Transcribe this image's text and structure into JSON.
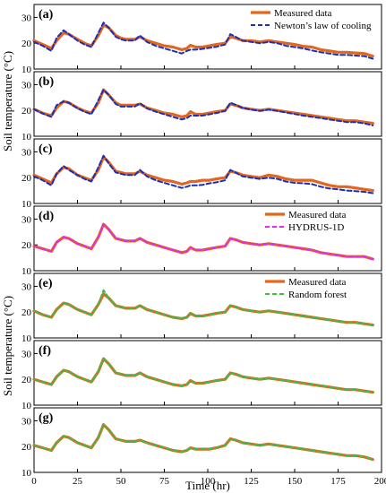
{
  "figure": {
    "y_axis_label": "Soil temperature (°C)",
    "x_axis_label": "Time (hr)",
    "x_tick_labels": [
      "0",
      "25",
      "50",
      "75",
      "100",
      "125",
      "150",
      "175",
      "200"
    ]
  },
  "colors": {
    "measured": "#E2661B",
    "newton": "#1C2FB8",
    "hydrus": "#E82BE0",
    "random_forest": "#47B847"
  },
  "chart_data": [
    {
      "type": "line",
      "panel_label": "(a)",
      "xlim": [
        0,
        200
      ],
      "ylim": [
        10,
        35
      ],
      "yticks": [
        10,
        20,
        30
      ],
      "legend": {
        "placement": "top-right",
        "entries": [
          "Measured data",
          "Newton’s law of cooling"
        ]
      },
      "x": [
        0,
        5,
        10,
        13,
        17,
        20,
        25,
        29,
        33,
        37,
        40,
        43,
        47,
        50,
        53,
        58,
        61,
        65,
        70,
        75,
        80,
        85,
        88,
        90,
        93,
        97,
        101,
        105,
        110,
        113,
        116,
        120,
        125,
        130,
        135,
        140,
        145,
        150,
        155,
        160,
        165,
        170,
        175,
        180,
        185,
        190,
        195
      ],
      "series": [
        {
          "name": "Measured data",
          "values": [
            21,
            19.5,
            18,
            21,
            24,
            23.5,
            21.5,
            20,
            19,
            23,
            27,
            26,
            23,
            22,
            21.5,
            21.5,
            22.5,
            21,
            20,
            19,
            18.5,
            17.5,
            18,
            19.2,
            18.5,
            18.5,
            19,
            19.5,
            20,
            22.5,
            22,
            21,
            21,
            20.5,
            21,
            20.5,
            20,
            19.5,
            18.8,
            18.5,
            17.5,
            17,
            16.5,
            16.5,
            16.2,
            16,
            15
          ]
        },
        {
          "name": "Newton’s law of cooling",
          "values": [
            20.5,
            19,
            17,
            22,
            25,
            23.5,
            21,
            19.5,
            18.5,
            24,
            28,
            26,
            22.5,
            21.5,
            21,
            21,
            23,
            20.5,
            19,
            18,
            17,
            16,
            17,
            17.5,
            17.5,
            17.8,
            18.2,
            18.6,
            19.5,
            23.5,
            22.5,
            21,
            20.5,
            20,
            20.5,
            20,
            19,
            18.5,
            18,
            17.2,
            16.5,
            16,
            15.5,
            15.5,
            15.2,
            15,
            14
          ]
        }
      ]
    },
    {
      "type": "line",
      "panel_label": "(b)",
      "xlim": [
        0,
        200
      ],
      "ylim": [
        10,
        35
      ],
      "yticks": [
        10,
        20,
        30
      ],
      "x": [
        0,
        5,
        10,
        13,
        17,
        20,
        25,
        29,
        33,
        37,
        40,
        43,
        47,
        50,
        53,
        58,
        61,
        65,
        70,
        75,
        80,
        85,
        88,
        90,
        93,
        97,
        101,
        105,
        110,
        113,
        116,
        120,
        125,
        130,
        135,
        140,
        145,
        150,
        155,
        160,
        165,
        170,
        175,
        180,
        185,
        190,
        195
      ],
      "series": [
        {
          "name": "Measured data",
          "values": [
            20.5,
            19,
            18,
            21,
            23.5,
            23,
            21,
            19.8,
            19,
            23,
            28,
            26,
            23,
            22,
            22,
            22,
            22.5,
            21,
            20,
            19,
            18.5,
            17.5,
            18,
            19.5,
            18.5,
            18.5,
            19,
            19.5,
            20,
            22.5,
            22,
            21,
            20.5,
            20,
            20.5,
            20,
            19.5,
            19,
            18.5,
            18,
            17.5,
            17,
            16.5,
            16,
            16,
            15.5,
            15
          ]
        },
        {
          "name": "Newton’s law of cooling",
          "values": [
            20.5,
            18.8,
            17.5,
            22,
            23.5,
            23,
            20.8,
            19.5,
            18.5,
            24,
            28,
            26,
            22.5,
            21.5,
            21.5,
            21.5,
            22.8,
            20.8,
            19.5,
            18.5,
            17.5,
            16.5,
            17,
            18,
            18,
            18,
            18.5,
            19,
            19.8,
            23,
            22.2,
            21,
            20.3,
            19.8,
            20.3,
            19.8,
            19.2,
            18.6,
            18,
            17.5,
            17,
            16.5,
            16,
            15.5,
            15.5,
            15,
            14.2
          ]
        }
      ]
    },
    {
      "type": "line",
      "panel_label": "(c)",
      "xlim": [
        0,
        200
      ],
      "ylim": [
        10,
        35
      ],
      "yticks": [
        10,
        20,
        30
      ],
      "x": [
        0,
        5,
        10,
        13,
        17,
        20,
        25,
        29,
        33,
        37,
        40,
        43,
        47,
        50,
        53,
        58,
        61,
        65,
        70,
        75,
        80,
        85,
        88,
        90,
        93,
        97,
        101,
        105,
        110,
        113,
        116,
        120,
        125,
        130,
        135,
        140,
        145,
        150,
        155,
        160,
        165,
        170,
        175,
        180,
        185,
        190,
        195
      ],
      "series": [
        {
          "name": "Measured data",
          "values": [
            21,
            19.5,
            18,
            21.5,
            24,
            23.5,
            21,
            20,
            19,
            23,
            28,
            26,
            22.5,
            22,
            21.5,
            21.5,
            22.5,
            21,
            20,
            19,
            18.5,
            17.5,
            18,
            18.5,
            18.5,
            19,
            19,
            19.5,
            20,
            22.5,
            22,
            21,
            20.5,
            20,
            21,
            20.5,
            19.5,
            19,
            19,
            19,
            18,
            17,
            16.5,
            16.5,
            16,
            15.5,
            15
          ]
        },
        {
          "name": "Newton’s law of cooling",
          "values": [
            20.5,
            19,
            17,
            21.5,
            24.5,
            23,
            21,
            19.5,
            18.5,
            24,
            28.5,
            25.5,
            22,
            21.5,
            21,
            21,
            23,
            20.5,
            19,
            18,
            17,
            16,
            16.5,
            17,
            17,
            17.2,
            17.8,
            18.2,
            19,
            23,
            22,
            20.5,
            20,
            19.5,
            20,
            19.5,
            18.5,
            18,
            17.8,
            17.5,
            16.5,
            15.8,
            15.5,
            15,
            14.8,
            14.5,
            14
          ]
        }
      ]
    },
    {
      "type": "line",
      "panel_label": "(d)",
      "xlim": [
        0,
        200
      ],
      "ylim": [
        10,
        35
      ],
      "yticks": [
        10,
        20,
        30
      ],
      "legend": {
        "placement": "top-right",
        "entries": [
          "Measured data",
          "HYDRUS-1D"
        ]
      },
      "x": [
        0,
        5,
        10,
        13,
        17,
        20,
        25,
        29,
        33,
        37,
        40,
        43,
        47,
        50,
        53,
        58,
        61,
        65,
        70,
        75,
        80,
        85,
        88,
        90,
        93,
        97,
        101,
        105,
        110,
        113,
        116,
        120,
        125,
        130,
        135,
        140,
        145,
        150,
        155,
        160,
        165,
        170,
        175,
        180,
        185,
        190,
        195
      ],
      "series": [
        {
          "name": "Measured data",
          "values": [
            19.5,
            18.5,
            17.5,
            21,
            23,
            22.5,
            20.5,
            19.5,
            18.5,
            23,
            28,
            26,
            22.5,
            22,
            21.5,
            21.5,
            22.5,
            21,
            20,
            19,
            18,
            17,
            17.5,
            19,
            18,
            18,
            18.5,
            19,
            19.5,
            22.5,
            22,
            21,
            20.5,
            20,
            20.5,
            20,
            19.5,
            19,
            18.5,
            18,
            17,
            16.5,
            16,
            15.5,
            15.5,
            15.5,
            14.5
          ]
        },
        {
          "name": "HYDRUS-1D",
          "values": [
            19.5,
            18.5,
            17.5,
            21,
            23,
            22.5,
            20.5,
            19.5,
            18.5,
            23,
            28,
            26,
            22.5,
            22,
            21.5,
            21.5,
            22.5,
            21,
            20,
            19,
            18,
            17,
            17.5,
            19,
            18,
            18,
            18.5,
            19,
            19.5,
            22.5,
            22,
            21,
            20.5,
            20,
            20.5,
            20,
            19.5,
            19,
            18.5,
            18,
            17,
            16.5,
            16,
            15.5,
            15.5,
            15.5,
            14.5
          ]
        }
      ]
    },
    {
      "type": "line",
      "panel_label": "(e)",
      "xlim": [
        0,
        200
      ],
      "ylim": [
        10,
        35
      ],
      "yticks": [
        10,
        20,
        30
      ],
      "legend": {
        "placement": "top-right",
        "entries": [
          "Measured data",
          "Random forest"
        ]
      },
      "x": [
        0,
        5,
        10,
        13,
        17,
        20,
        25,
        29,
        33,
        37,
        40,
        43,
        47,
        50,
        53,
        58,
        61,
        65,
        70,
        75,
        80,
        85,
        88,
        90,
        93,
        97,
        101,
        105,
        110,
        113,
        116,
        120,
        125,
        130,
        135,
        140,
        145,
        150,
        155,
        160,
        165,
        170,
        175,
        180,
        185,
        190,
        195
      ],
      "series": [
        {
          "name": "Measured data",
          "values": [
            20.5,
            19,
            18,
            21,
            23.5,
            23,
            21,
            20,
            19,
            23,
            27,
            25.5,
            22.5,
            22,
            21.5,
            21.5,
            22.5,
            21,
            20,
            19,
            18,
            17.5,
            18,
            19.5,
            18.5,
            18.5,
            19,
            19.5,
            20,
            22.5,
            22,
            21,
            20.5,
            20,
            20.5,
            20,
            19.5,
            19,
            18.5,
            18,
            17.5,
            17,
            16.5,
            16,
            16,
            15.5,
            15
          ]
        },
        {
          "name": "Random forest",
          "values": [
            20.5,
            19,
            18,
            21,
            23.5,
            23,
            21,
            20,
            19,
            23,
            28.5,
            25.5,
            22.5,
            22,
            21.5,
            21.5,
            22.5,
            21,
            20,
            19,
            18,
            17.5,
            18,
            19.5,
            18.5,
            18.5,
            19,
            19.5,
            20,
            22.5,
            22,
            21,
            20.5,
            20,
            20.5,
            20,
            19.5,
            19,
            18.5,
            18,
            17.5,
            17,
            16.5,
            16,
            16,
            15.5,
            15
          ]
        }
      ]
    },
    {
      "type": "line",
      "panel_label": "(f)",
      "xlim": [
        0,
        200
      ],
      "ylim": [
        10,
        35
      ],
      "yticks": [
        10,
        20,
        30
      ],
      "x": [
        0,
        5,
        10,
        13,
        17,
        20,
        25,
        29,
        33,
        37,
        40,
        43,
        47,
        50,
        53,
        58,
        61,
        65,
        70,
        75,
        80,
        85,
        88,
        90,
        93,
        97,
        101,
        105,
        110,
        113,
        116,
        120,
        125,
        130,
        135,
        140,
        145,
        150,
        155,
        160,
        165,
        170,
        175,
        180,
        185,
        190,
        195
      ],
      "series": [
        {
          "name": "Measured data",
          "values": [
            20,
            19,
            18,
            21,
            23.5,
            23,
            21,
            20,
            19,
            23,
            28,
            26,
            22.5,
            22,
            21.5,
            21.5,
            22.5,
            21,
            20,
            19,
            18,
            17.5,
            18,
            19.5,
            18.5,
            18.5,
            19,
            19.5,
            20,
            22.5,
            22,
            21,
            20.5,
            20,
            20.5,
            20,
            19.5,
            19,
            18.5,
            18,
            17.5,
            17,
            16.5,
            16,
            16,
            15.5,
            15
          ]
        },
        {
          "name": "Random forest",
          "values": [
            20,
            19,
            18,
            21,
            23.5,
            23,
            21,
            20,
            19,
            23,
            28,
            26,
            22.5,
            22,
            21.5,
            21.5,
            22.5,
            21,
            20,
            19,
            18,
            17.5,
            18,
            19.5,
            18.5,
            18.5,
            19,
            19.5,
            20,
            22.5,
            22,
            21,
            20.5,
            20,
            20.5,
            20,
            19.5,
            19,
            18.5,
            18,
            17.5,
            17,
            16.5,
            16,
            16,
            15.5,
            15
          ]
        }
      ]
    },
    {
      "type": "line",
      "panel_label": "(g)",
      "xlim": [
        0,
        200
      ],
      "ylim": [
        10,
        35
      ],
      "yticks": [
        10,
        20,
        30
      ],
      "x": [
        0,
        5,
        10,
        13,
        17,
        20,
        25,
        29,
        33,
        37,
        40,
        43,
        47,
        50,
        53,
        58,
        61,
        65,
        70,
        75,
        80,
        85,
        88,
        90,
        93,
        97,
        101,
        105,
        110,
        113,
        116,
        120,
        125,
        130,
        135,
        140,
        145,
        150,
        155,
        160,
        165,
        170,
        175,
        180,
        185,
        190,
        195
      ],
      "series": [
        {
          "name": "Measured data",
          "values": [
            20.5,
            19.5,
            18.5,
            21.5,
            24,
            23.5,
            21.5,
            20.5,
            19.5,
            23.5,
            28.5,
            26.5,
            23,
            22.5,
            22,
            22,
            22.5,
            21.5,
            20.5,
            19.5,
            18.5,
            18,
            18.5,
            19.5,
            19,
            19,
            19,
            19.5,
            20.5,
            23,
            22.5,
            21.5,
            21,
            20.5,
            21,
            20.5,
            20,
            19.5,
            19,
            18.5,
            18,
            17.5,
            17,
            16.5,
            16.5,
            16,
            15
          ]
        },
        {
          "name": "Random forest",
          "values": [
            20.5,
            19.5,
            18.5,
            21.5,
            24,
            23.5,
            21.5,
            20.5,
            19.5,
            23.5,
            28.5,
            26.5,
            23,
            22.5,
            22,
            22,
            22.5,
            21.5,
            20.5,
            19.5,
            18.5,
            18,
            18.5,
            19.5,
            19,
            19,
            19,
            19.5,
            20.5,
            23,
            22.5,
            21.5,
            21,
            20.5,
            21,
            20.5,
            20,
            19.5,
            19,
            18.5,
            18,
            17.5,
            17,
            16.5,
            16.5,
            16,
            15
          ]
        }
      ]
    }
  ]
}
